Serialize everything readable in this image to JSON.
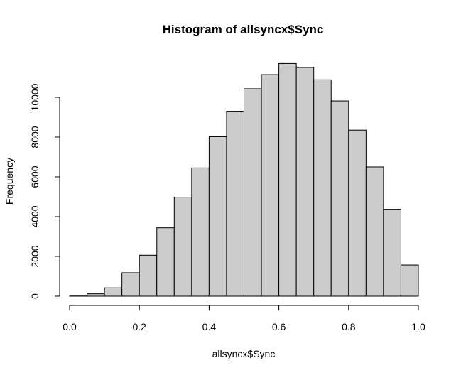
{
  "chart_data": {
    "type": "bar",
    "title": "Histogram of allsyncx$Sync",
    "xlabel": "allsyncx$Sync",
    "ylabel": "Frequency",
    "bin_edges": [
      0.0,
      0.05,
      0.1,
      0.15,
      0.2,
      0.25,
      0.3,
      0.35,
      0.4,
      0.45,
      0.5,
      0.55,
      0.6,
      0.65,
      0.7,
      0.75,
      0.8,
      0.85,
      0.9,
      0.95,
      1.0
    ],
    "values": [
      10,
      120,
      420,
      1180,
      2060,
      3440,
      4980,
      6450,
      8020,
      9300,
      10430,
      11140,
      11700,
      11500,
      10880,
      9820,
      8350,
      6500,
      4370,
      1570
    ],
    "xlim": [
      0.0,
      1.0
    ],
    "ylim": [
      0,
      11700
    ],
    "xticks": [
      0.0,
      0.2,
      0.4,
      0.6,
      0.8,
      1.0
    ],
    "xtick_labels": [
      "0.0",
      "0.2",
      "0.4",
      "0.6",
      "0.8",
      "1.0"
    ],
    "yticks": [
      0,
      2000,
      4000,
      6000,
      8000,
      10000
    ],
    "ytick_labels": [
      "0",
      "2000",
      "4000",
      "6000",
      "8000",
      "10000"
    ],
    "bar_fill": "#cccccc",
    "grid": false,
    "legend": "none"
  }
}
